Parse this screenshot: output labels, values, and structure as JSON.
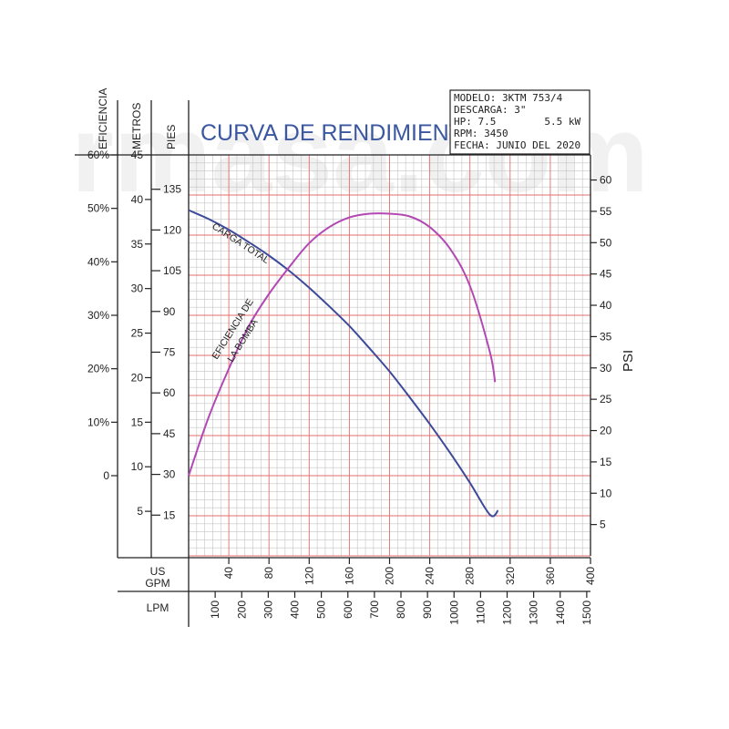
{
  "watermark": "rmasa.com",
  "chart_data": {
    "type": "line",
    "title": "CURVA DE RENDIMIENTO",
    "info_box": [
      "MODELO: 3KTM 753/4",
      "DESCARGA: 3\"",
      "HP: 7.5        5.5 kW",
      "RPM: 3450",
      "FECHA: JUNIO DEL 2020"
    ],
    "axes": {
      "x_gpm": {
        "label_line1": "US",
        "label_line2": "GPM",
        "ticks": [
          40,
          80,
          120,
          160,
          200,
          240,
          280,
          320,
          360,
          400
        ],
        "range": [
          0,
          400
        ]
      },
      "x_lpm": {
        "label": "LPM",
        "ticks": [
          100,
          200,
          300,
          400,
          500,
          600,
          700,
          800,
          900,
          1000,
          1100,
          1200,
          1300,
          1400,
          1500
        ]
      },
      "eficiencia": {
        "label": "EFICIENCIA",
        "ticks": [
          {
            "v": 0,
            "t": "0"
          },
          {
            "v": 10,
            "t": "10%"
          },
          {
            "v": 20,
            "t": "20%"
          },
          {
            "v": 30,
            "t": "30%"
          },
          {
            "v": 40,
            "t": "40%"
          },
          {
            "v": 50,
            "t": "50%"
          },
          {
            "v": 60,
            "t": "60%"
          }
        ],
        "range": [
          -15,
          60
        ]
      },
      "metros": {
        "label": "METROS",
        "ticks": [
          5,
          10,
          15,
          20,
          25,
          30,
          35,
          40,
          45
        ],
        "range": [
          0,
          45
        ]
      },
      "pies": {
        "label": "PIES",
        "ticks": [
          15,
          30,
          45,
          60,
          75,
          90,
          105,
          120,
          135
        ],
        "range": [
          0,
          147.6
        ]
      },
      "psi": {
        "label": "PSI",
        "ticks": [
          5,
          10,
          15,
          20,
          25,
          30,
          35,
          40,
          45,
          50,
          55,
          60
        ],
        "range": [
          0,
          64
        ]
      }
    },
    "series": [
      {
        "name": "CARGA TOTAL",
        "unit": "metros",
        "color": "#3d4a9a",
        "x": [
          0,
          20,
          40,
          60,
          80,
          100,
          120,
          140,
          160,
          180,
          200,
          220,
          240,
          260,
          280,
          300,
          308
        ],
        "y": [
          38.8,
          37.8,
          36.6,
          35.2,
          33.7,
          32.0,
          30.1,
          28.0,
          25.8,
          23.3,
          20.7,
          17.8,
          14.8,
          11.6,
          8.2,
          4.6,
          5.1
        ]
      },
      {
        "name": "EFICIENCIA DE LA BOMBA",
        "unit": "eficiencia",
        "color": "#b248b4",
        "x": [
          0,
          20,
          40,
          60,
          80,
          100,
          120,
          140,
          160,
          180,
          200,
          220,
          240,
          260,
          280,
          300,
          305
        ],
        "y": [
          0,
          11,
          20,
          28,
          34,
          39,
          43.5,
          46.5,
          48.3,
          49,
          49,
          48.5,
          46.5,
          42.5,
          35.5,
          23,
          17.5
        ]
      }
    ],
    "curve_labels": {
      "carga": "CARGA TOTAL",
      "ef1": "EFICIENCIA DE",
      "ef2": "LA BOMBA"
    },
    "colors": {
      "grid_minor": "#c4c4c4",
      "grid_major": "#e36e6e",
      "axis": "#222222"
    }
  }
}
